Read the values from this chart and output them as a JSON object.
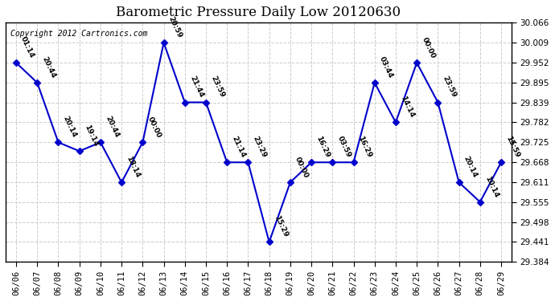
{
  "title": "Barometric Pressure Daily Low 20120630",
  "copyright": "Copyright 2012 Cartronics.com",
  "background_color": "#ffffff",
  "line_color": "#0000cc",
  "marker_color": "#0000cc",
  "grid_color": "#cccccc",
  "x_labels": [
    "06/06",
    "06/07",
    "06/08",
    "06/09",
    "06/10",
    "06/11",
    "06/12",
    "06/13",
    "06/14",
    "06/15",
    "06/16",
    "06/17",
    "06/18",
    "06/19",
    "06/20",
    "06/21",
    "06/22",
    "06/23",
    "06/24",
    "06/25",
    "06/26",
    "06/27",
    "06/28",
    "06/29"
  ],
  "y_values": [
    29.952,
    29.895,
    29.725,
    29.7,
    29.725,
    29.611,
    29.725,
    30.009,
    29.839,
    29.839,
    29.668,
    29.668,
    29.441,
    29.611,
    29.668,
    29.668,
    29.668,
    29.895,
    29.782,
    29.952,
    29.839,
    29.611,
    29.555,
    29.668
  ],
  "point_labels": [
    "01:14",
    "20:44",
    "20:14",
    "19:14",
    "20:44",
    "18:14",
    "00:00",
    "20:59",
    "21:44",
    "23:59",
    "21:14",
    "23:29",
    "15:29",
    "00:00",
    "16:29",
    "03:59",
    "16:29",
    "03:44",
    "14:14",
    "00:00",
    "23:59",
    "20:14",
    "10:14",
    "15:59"
  ],
  "ylim_min": 29.384,
  "ylim_max": 30.066,
  "yticks": [
    29.384,
    29.441,
    29.498,
    29.555,
    29.611,
    29.668,
    29.725,
    29.782,
    29.839,
    29.895,
    29.952,
    30.009,
    30.066
  ]
}
